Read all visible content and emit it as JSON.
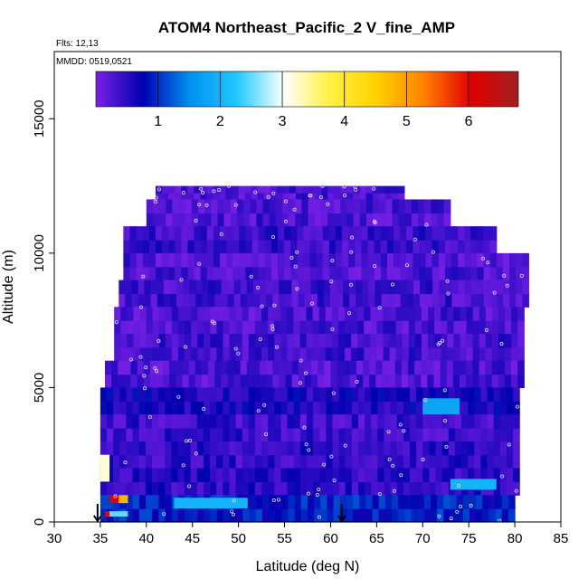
{
  "chart_data": {
    "type": "heatmap",
    "title": "ATOM4 Northeast_Pacific_2 V_fine_AMP",
    "flights_label": "Flts: 12,13",
    "dates_label": "MMDD: 0519,0521",
    "xlabel": "Latitude (deg N)",
    "ylabel": "Altitude (m)",
    "xlim": [
      30,
      85
    ],
    "ylim": [
      0,
      17500
    ],
    "xticks": [
      "30",
      "35",
      "40",
      "45",
      "50",
      "55",
      "60",
      "65",
      "70",
      "75",
      "80",
      "85"
    ],
    "yticks": [
      "0",
      "5000",
      "10000",
      "15000"
    ],
    "colorbar": {
      "range": [
        0,
        6.8
      ],
      "ticks": [
        "1",
        "2",
        "3",
        "4",
        "5",
        "6"
      ],
      "placement": "top inside plot",
      "colors": [
        "#7a20e6",
        "#0000b0",
        "#0090f0",
        "#20c8ff",
        "#ffffff",
        "#fff040",
        "#ffd000",
        "#ff8000",
        "#e00000",
        "#a02020"
      ]
    },
    "arrows_at_latitude": [
      34.7,
      61.2
    ],
    "rows": [
      {
        "lat": [
          41,
          68
        ],
        "alt": [
          12000,
          12500
        ],
        "value": 0.3
      },
      {
        "lat": [
          40,
          73
        ],
        "alt": [
          11000,
          12000
        ],
        "value": 0.3
      },
      {
        "lat": [
          37.5,
          78
        ],
        "alt": [
          10000,
          11000
        ],
        "value": 0.4
      },
      {
        "lat": [
          37.5,
          81.5
        ],
        "alt": [
          9000,
          10000
        ],
        "value": 0.3
      },
      {
        "lat": [
          37,
          81.5
        ],
        "alt": [
          8000,
          9000
        ],
        "value": 0.35
      },
      {
        "lat": [
          36.5,
          81
        ],
        "alt": [
          7000,
          8000
        ],
        "value": 0.3
      },
      {
        "lat": [
          36.5,
          81
        ],
        "alt": [
          6000,
          7000
        ],
        "value": 0.35
      },
      {
        "lat": [
          35.5,
          81
        ],
        "alt": [
          5000,
          6000
        ],
        "value": 0.3
      },
      {
        "lat": [
          35,
          80.5
        ],
        "alt": [
          4000,
          5000
        ],
        "value": 0.6
      },
      {
        "lat": [
          35,
          80.5
        ],
        "alt": [
          3000,
          4000
        ],
        "value": 0.4
      },
      {
        "lat": [
          35,
          80.5
        ],
        "alt": [
          2000,
          3000
        ],
        "value": 0.45
      },
      {
        "lat": [
          35,
          80.5
        ],
        "alt": [
          1000,
          2000
        ],
        "value": 0.5
      },
      {
        "lat": [
          35,
          80
        ],
        "alt": [
          0,
          1000
        ],
        "value": 0.9
      }
    ],
    "hotspots": [
      {
        "lat": [
          35,
          36
        ],
        "alt": [
          1500,
          2500
        ],
        "value": 3.2
      },
      {
        "lat": [
          36,
          37
        ],
        "alt": [
          700,
          1000
        ],
        "value": 6.2
      },
      {
        "lat": [
          37,
          38
        ],
        "alt": [
          700,
          1000
        ],
        "value": 4.8
      },
      {
        "lat": [
          35.5,
          36
        ],
        "alt": [
          200,
          400
        ],
        "value": 6.0
      },
      {
        "lat": [
          36,
          38
        ],
        "alt": [
          200,
          400
        ],
        "value": 2.5
      },
      {
        "lat": [
          43,
          51
        ],
        "alt": [
          500,
          900
        ],
        "value": 2.0
      },
      {
        "lat": [
          73,
          78
        ],
        "alt": [
          1200,
          1600
        ],
        "value": 2.0
      },
      {
        "lat": [
          70,
          74
        ],
        "alt": [
          4000,
          4600
        ],
        "value": 1.8
      }
    ]
  }
}
